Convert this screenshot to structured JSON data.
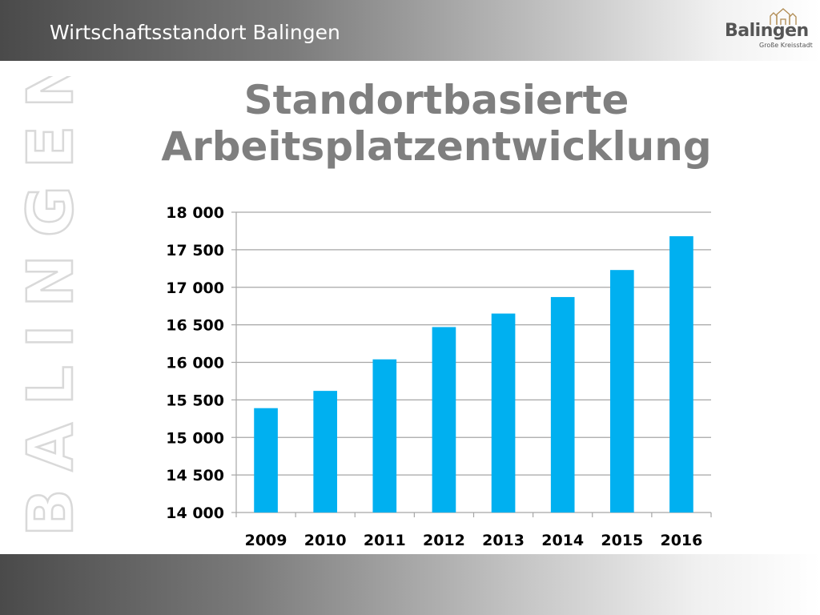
{
  "header": {
    "title": "Wirtschaftsstandort Balingen"
  },
  "logo": {
    "name": "Balingen",
    "subtitle": "Große Kreisstadt"
  },
  "watermark": {
    "text": "BALINGEN"
  },
  "colors": {
    "bar": "#00b0f0",
    "title": "#7f7f7f",
    "grid": "#a6a6a6"
  },
  "chart_data": {
    "type": "bar",
    "title": "Standortbasierte Arbeitsplatzentwicklung",
    "categories": [
      "2009",
      "2010",
      "2011",
      "2012",
      "2013",
      "2014",
      "2015",
      "2016"
    ],
    "values": [
      15390,
      15620,
      16040,
      16470,
      16650,
      16870,
      17230,
      17680
    ],
    "ylim": [
      14000,
      18000
    ],
    "yticks": [
      14000,
      14500,
      15000,
      15500,
      16000,
      16500,
      17000,
      17500,
      18000
    ],
    "ytick_labels": [
      "14 000",
      "14 500",
      "15 000",
      "15 500",
      "16 000",
      "16 500",
      "17 000",
      "17 500",
      "18 000"
    ],
    "grid": true,
    "legend": "none"
  }
}
